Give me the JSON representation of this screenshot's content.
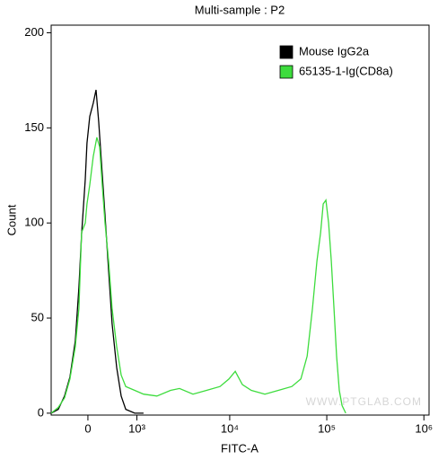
{
  "chart_data": {
    "type": "line",
    "title": "Multi-sample : P2",
    "x_label": "FITC-A",
    "y_label": "Count",
    "watermark": "WWW.PTGLAB.COM",
    "xscale": "biexponential",
    "xlim": [
      -684,
      1130000
    ],
    "xticks": [
      0,
      {
        "value": 1000,
        "label": "10³"
      },
      {
        "value": 10000,
        "label": "10⁴"
      },
      {
        "value": 100000,
        "label": "10⁵"
      },
      {
        "value": 1000000,
        "label": "10⁶"
      }
    ],
    "ylim": [
      -1,
      204
    ],
    "yticks": [
      0,
      50,
      100,
      150,
      200
    ],
    "legend": "upper right",
    "series": [
      {
        "name": "Mouse IgG2a",
        "color": "#000000",
        "x": [
          -684,
          -529,
          -404,
          -305,
          -210,
          -149,
          -104,
          -44,
          -15,
          30,
          89,
          134,
          180,
          226,
          289,
          354,
          421,
          511,
          606,
          709,
          938,
          1205
        ],
        "values": [
          0,
          2,
          9,
          19,
          38,
          66,
          94,
          123,
          142,
          156,
          163,
          170,
          153,
          132,
          104,
          75,
          47,
          24,
          9,
          2,
          0,
          0
        ]
      },
      {
        "name": "65135-1-Ig(CD8a)",
        "color": "#3ddc3d",
        "x": [
          -684,
          -529,
          -404,
          -305,
          -210,
          -149,
          -104,
          -44,
          -15,
          30,
          89,
          149,
          195,
          241,
          289,
          354,
          421,
          511,
          606,
          709,
          938,
          1205,
          1714,
          2415,
          3005,
          4164,
          5753,
          7932,
          9820,
          11402,
          13512,
          16718,
          23040,
          31716,
          43653,
          54063,
          62738,
          71274,
          79255,
          86334,
          91955,
          97993,
          104447,
          111248,
          118674,
          126308,
          134636,
          143658,
          156844
        ],
        "values": [
          0,
          3,
          8,
          18,
          35,
          55,
          95,
          100,
          110,
          120,
          135,
          145,
          140,
          120,
          100,
          80,
          55,
          35,
          20,
          14,
          12,
          10,
          9,
          12,
          13,
          10,
          12,
          14,
          18,
          22,
          15,
          12,
          10,
          12,
          14,
          18,
          30,
          55,
          80,
          95,
          110,
          112,
          100,
          80,
          55,
          30,
          12,
          4,
          0
        ]
      }
    ]
  }
}
